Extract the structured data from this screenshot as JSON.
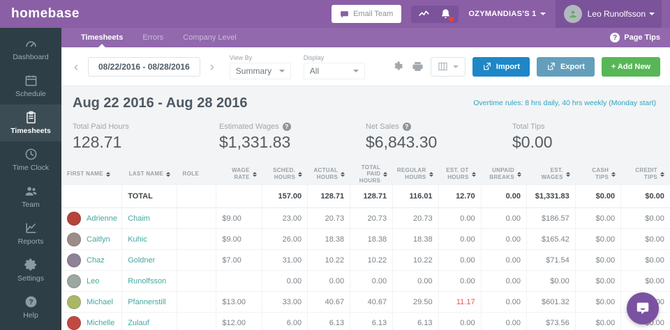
{
  "colors": {
    "header_purple": "#8a5fa5",
    "tabstrip_purple": "#9169ac",
    "sidebar_dark": "#2e3e46",
    "link_teal": "#43a89f",
    "overtime_teal": "#2fa3c2",
    "import_blue": "#1d87c8",
    "export_blue": "#639fbc",
    "add_green": "#57b757",
    "alert_red": "#e2574c"
  },
  "topbar": {
    "logo": "homebase",
    "email_team_label": "Email Team",
    "company_label": "OZYMANDIAS'S 1",
    "user_name": "Leo Runolfsson"
  },
  "sidebar": {
    "items": [
      {
        "label": "Dashboard",
        "icon": "gauge",
        "active": false
      },
      {
        "label": "Schedule",
        "icon": "calendar",
        "active": false
      },
      {
        "label": "Timesheets",
        "icon": "clipboard",
        "active": true
      },
      {
        "label": "Time Clock",
        "icon": "clock",
        "active": false
      },
      {
        "label": "Team",
        "icon": "users",
        "active": false
      },
      {
        "label": "Reports",
        "icon": "chart",
        "active": false
      },
      {
        "label": "Settings",
        "icon": "gear",
        "active": false
      },
      {
        "label": "Help",
        "icon": "help",
        "active": false
      }
    ]
  },
  "tabs": {
    "items": [
      {
        "label": "Timesheets",
        "active": true
      },
      {
        "label": "Errors",
        "active": false
      },
      {
        "label": "Company Level",
        "active": false
      }
    ],
    "page_tips_label": "Page Tips"
  },
  "toolbar": {
    "date_range": "08/22/2016 - 08/28/2016",
    "view_by_label": "View By",
    "view_by_value": "Summary",
    "display_label": "Display",
    "display_value": "All",
    "import_label": "Import",
    "export_label": "Export",
    "add_new_label": "+ Add New"
  },
  "title": {
    "text": "Aug 22 2016 - Aug 28 2016",
    "overtime_rules": "Overtime rules: 8 hrs daily, 40 hrs weekly (Monday start)"
  },
  "stats": [
    {
      "label": "Total Paid Hours",
      "value": "128.71",
      "help": false
    },
    {
      "label": "Estimated Wages",
      "value": "$1,331.83",
      "help": true
    },
    {
      "label": "Net Sales",
      "value": "$6,843.30",
      "help": true
    },
    {
      "label": "Total Tips",
      "value": "$0.00",
      "help": false
    }
  ],
  "table": {
    "columns": [
      {
        "label": "First Name",
        "sort": true
      },
      {
        "label": "Last Name",
        "sort": true
      },
      {
        "label": "Role",
        "sort": false
      },
      {
        "label": "Wage Rate",
        "sort": true
      },
      {
        "label": "Sched. Hours",
        "sort": true
      },
      {
        "label": "Actual Hours",
        "sort": true
      },
      {
        "label": "Total Paid Hours",
        "sort": true
      },
      {
        "label": "Regular Hours",
        "sort": true
      },
      {
        "label": "Est. OT Hours",
        "sort": true
      },
      {
        "label": "Unpaid Breaks",
        "sort": true
      },
      {
        "label": "Est. Wages",
        "sort": true
      },
      {
        "label": "Cash Tips",
        "sort": true
      },
      {
        "label": "Credit Tips",
        "sort": true
      }
    ],
    "total": {
      "label": "TOTAL",
      "sched": "157.00",
      "actual": "128.71",
      "total_paid": "128.71",
      "regular": "116.01",
      "est_ot": "12.70",
      "unpaid_breaks": "0.00",
      "est_wages": "$1,331.83",
      "cash_tips": "$0.00",
      "credit_tips": "$0.00"
    },
    "rows": [
      {
        "first": "Adrienne",
        "last": "Chaim",
        "role": "",
        "avatar_color": "#b5443c",
        "wage": "$9.00",
        "sched": "23.00",
        "actual": "20.73",
        "total_paid": "20.73",
        "regular": "20.73",
        "est_ot": "0.00",
        "ot_alert": false,
        "unpaid_breaks": "0.00",
        "est_wages": "$186.57",
        "cash_tips": "$0.00",
        "credit_tips": "$0.00"
      },
      {
        "first": "Caitlyn",
        "last": "Kuhic",
        "role": "",
        "avatar_color": "#9b8e8a",
        "wage": "$9.00",
        "sched": "26.00",
        "actual": "18.38",
        "total_paid": "18.38",
        "regular": "18.38",
        "est_ot": "0.00",
        "ot_alert": false,
        "unpaid_breaks": "0.00",
        "est_wages": "$165.42",
        "cash_tips": "$0.00",
        "credit_tips": "$0.00"
      },
      {
        "first": "Chaz",
        "last": "Goldner",
        "role": "",
        "avatar_color": "#8f8296",
        "wage": "$7.00",
        "sched": "31.00",
        "actual": "10.22",
        "total_paid": "10.22",
        "regular": "10.22",
        "est_ot": "0.00",
        "ot_alert": false,
        "unpaid_breaks": "0.00",
        "est_wages": "$71.54",
        "cash_tips": "$0.00",
        "credit_tips": "$0.00"
      },
      {
        "first": "Leo",
        "last": "Runolfsson",
        "role": "",
        "avatar_color": "#9aa89f",
        "wage": "",
        "sched": "0.00",
        "actual": "0.00",
        "total_paid": "0.00",
        "regular": "0.00",
        "est_ot": "0.00",
        "ot_alert": false,
        "unpaid_breaks": "0.00",
        "est_wages": "$0.00",
        "cash_tips": "$0.00",
        "credit_tips": "$0.00"
      },
      {
        "first": "Michael",
        "last": "Pfannerstill",
        "role": "",
        "avatar_color": "#a9b868",
        "wage": "$13.00",
        "sched": "33.00",
        "actual": "40.67",
        "total_paid": "40.67",
        "regular": "29.50",
        "est_ot": "11.17",
        "ot_alert": true,
        "unpaid_breaks": "0.00",
        "est_wages": "$601.32",
        "cash_tips": "$0.00",
        "credit_tips": "$0.00"
      },
      {
        "first": "Michelle",
        "last": "Zulauf",
        "role": "",
        "avatar_color": "#c04a42",
        "wage": "$12.00",
        "sched": "6.00",
        "actual": "6.13",
        "total_paid": "6.13",
        "regular": "6.13",
        "est_ot": "0.00",
        "ot_alert": false,
        "unpaid_breaks": "0.00",
        "est_wages": "$73.56",
        "cash_tips": "$0.00",
        "credit_tips": "$0.00"
      }
    ]
  }
}
